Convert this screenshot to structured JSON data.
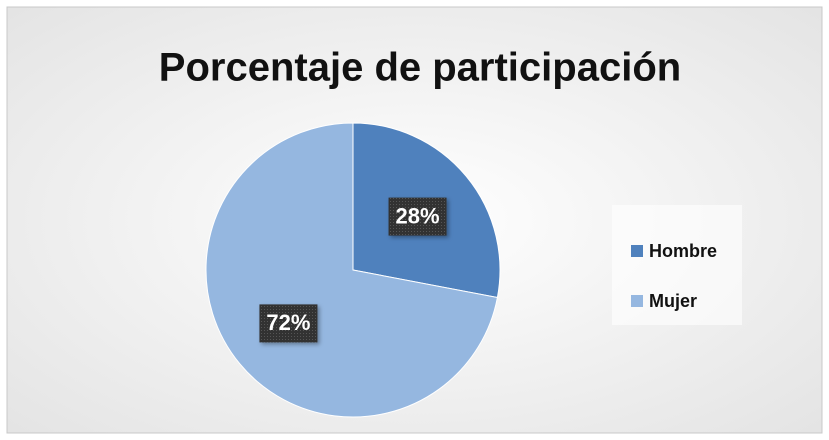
{
  "chart_data": {
    "type": "pie",
    "title": "Porcentaje de participación",
    "categories": [
      "Hombre",
      "Mujer"
    ],
    "values": [
      28,
      72
    ],
    "value_labels": [
      "28%",
      "72%"
    ],
    "colors": [
      "#4f81bd",
      "#95b7e0"
    ],
    "legend": "right"
  }
}
